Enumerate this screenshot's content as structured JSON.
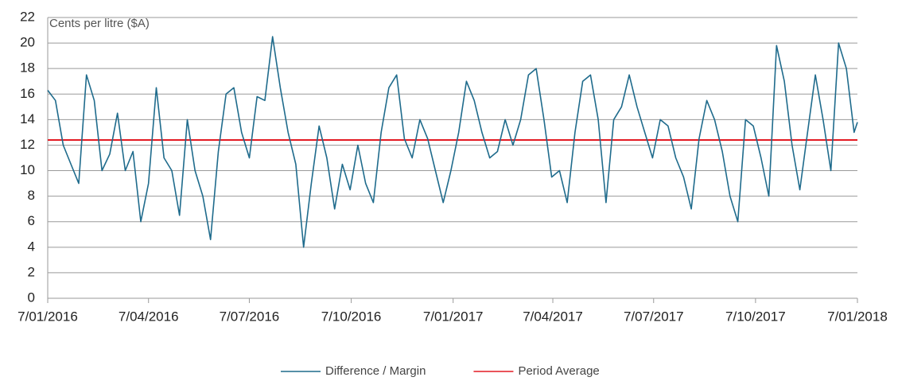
{
  "chart_data": {
    "type": "line",
    "ylabel": "Cents per litre ($A)",
    "x": [
      "7/01/2016",
      "14/01/2016",
      "21/01/2016",
      "28/01/2016",
      "4/02/2016",
      "11/02/2016",
      "18/02/2016",
      "25/02/2016",
      "3/03/2016",
      "10/03/2016",
      "17/03/2016",
      "24/03/2016",
      "31/03/2016",
      "7/04/2016",
      "14/04/2016",
      "21/04/2016",
      "28/04/2016",
      "5/05/2016",
      "12/05/2016",
      "19/05/2016",
      "26/05/2016",
      "2/06/2016",
      "9/06/2016",
      "16/06/2016",
      "23/06/2016",
      "30/06/2016",
      "7/07/2016",
      "14/07/2016",
      "21/07/2016",
      "28/07/2016",
      "4/08/2016",
      "11/08/2016",
      "18/08/2016",
      "25/08/2016",
      "1/09/2016",
      "8/09/2016",
      "15/09/2016",
      "22/09/2016",
      "29/09/2016",
      "6/10/2016",
      "13/10/2016",
      "20/10/2016",
      "27/10/2016",
      "3/11/2016",
      "10/11/2016",
      "17/11/2016",
      "24/11/2016",
      "1/12/2016",
      "8/12/2016",
      "15/12/2016",
      "22/12/2016",
      "29/12/2016",
      "5/01/2017",
      "12/01/2017",
      "19/01/2017",
      "26/01/2017",
      "2/02/2017",
      "9/02/2017",
      "16/02/2017",
      "23/02/2017",
      "2/03/2017",
      "9/03/2017",
      "16/03/2017",
      "23/03/2017",
      "30/03/2017",
      "6/04/2017",
      "13/04/2017",
      "20/04/2017",
      "27/04/2017",
      "4/05/2017",
      "11/05/2017",
      "18/05/2017",
      "25/05/2017",
      "1/06/2017",
      "8/06/2017",
      "15/06/2017",
      "22/06/2017",
      "29/06/2017",
      "6/07/2017",
      "13/07/2017",
      "20/07/2017",
      "27/07/2017",
      "3/08/2017",
      "10/08/2017",
      "17/08/2017",
      "24/08/2017",
      "31/08/2017",
      "7/09/2017",
      "14/09/2017",
      "21/09/2017",
      "28/09/2017",
      "5/10/2017",
      "12/10/2017",
      "19/10/2017",
      "26/10/2017",
      "2/11/2017",
      "9/11/2017",
      "16/11/2017",
      "23/11/2017",
      "30/11/2017",
      "7/12/2017",
      "14/12/2017",
      "21/12/2017",
      "28/12/2017",
      "4/01/2018",
      "7/01/2018"
    ],
    "series": [
      {
        "name": "Difference / Margin",
        "color": "#1f6b8c",
        "values": [
          16.3,
          15.5,
          12,
          10.5,
          9,
          17.5,
          15.5,
          10,
          11.3,
          14.5,
          10,
          11.5,
          6,
          9,
          16.5,
          11,
          10,
          6.5,
          14,
          10,
          8,
          4.6,
          11.5,
          16,
          16.5,
          13,
          11,
          15.8,
          15.5,
          20.5,
          16.5,
          13,
          10.5,
          4,
          9,
          13.5,
          11,
          7,
          10.5,
          8.5,
          12,
          9,
          7.5,
          13,
          16.5,
          17.5,
          12.5,
          11,
          14,
          12.5,
          10,
          7.5,
          10,
          13,
          17,
          15.5,
          13,
          11,
          11.5,
          14,
          12,
          14,
          17.5,
          18,
          14,
          9.5,
          10,
          7.5,
          13,
          17,
          17.5,
          14,
          7.5,
          14,
          15,
          17.5,
          15,
          13,
          11,
          14,
          13.5,
          11,
          9.5,
          7,
          12.5,
          15.5,
          14,
          11.5,
          8,
          6,
          14,
          13.5,
          11,
          8,
          19.8,
          17,
          12,
          8.5,
          13,
          17.5,
          14,
          10,
          20,
          18,
          13,
          13.8
        ]
      }
    ],
    "reference_lines": [
      {
        "name": "Period Average",
        "color": "#e31b23",
        "value": 12.4
      }
    ],
    "xlim": [
      "7/01/2016",
      "7/01/2018"
    ],
    "xticks": [
      "7/01/2016",
      "7/04/2016",
      "7/07/2016",
      "7/10/2016",
      "7/01/2017",
      "7/04/2017",
      "7/07/2017",
      "7/10/2017",
      "7/01/2018"
    ],
    "ylim": [
      0,
      22
    ],
    "yticks": [
      0,
      2,
      4,
      6,
      8,
      10,
      12,
      14,
      16,
      18,
      20,
      22
    ],
    "grid": true,
    "legend": "bottom"
  }
}
